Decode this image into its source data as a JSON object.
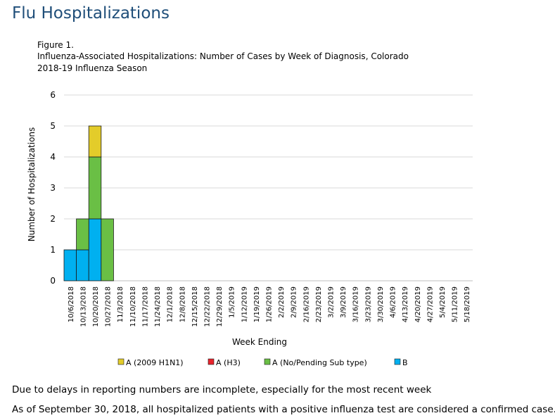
{
  "page": {
    "title": "Flu Hospitalizations",
    "figure_label": "Figure 1.",
    "caption_line1": "Influenza-Associated Hospitalizations: Number of  Cases by Week of Diagnosis, Colorado",
    "caption_line2": "2018-19  Influenza Season",
    "note1": "Due to delays in reporting numbers are incomplete, especially for the most recent week",
    "note2": "As of September 30, 2018, all hospitalized patients with a positive influenza test are considered a confirmed case."
  },
  "chart_data": {
    "type": "bar",
    "stacked": true,
    "title": "Influenza-Associated Hospitalizations: Number of  Cases by Week of Diagnosis, Colorado",
    "xlabel": "Week Ending",
    "ylabel": "Number of Hospitalizations",
    "ylim": [
      0,
      6
    ],
    "yticks": [
      0,
      1,
      2,
      3,
      4,
      5,
      6
    ],
    "grid": true,
    "legend_position": "bottom",
    "categories": [
      "10/6/2018",
      "10/13/2018",
      "10/20/2018",
      "10/27/2018",
      "11/3/2018",
      "11/10/2018",
      "11/17/2018",
      "11/24/2018",
      "12/1/2018",
      "12/8/2018",
      "12/15/2018",
      "12/22/2018",
      "12/29/2018",
      "1/5/2019",
      "1/12/2019",
      "1/19/2019",
      "1/26/2019",
      "2/2/2019",
      "2/9/2019",
      "2/16/2019",
      "2/23/2019",
      "3/2/2019",
      "3/9/2019",
      "3/16/2019",
      "3/23/2019",
      "3/30/2019",
      "4/6/2019",
      "4/13/2019",
      "4/20/2019",
      "4/27/2019",
      "5/4/2019",
      "5/11/2019",
      "5/18/2019"
    ],
    "series": [
      {
        "name": "B",
        "color": "#00b0f0",
        "values": [
          1,
          1,
          2,
          0,
          0,
          0,
          0,
          0,
          0,
          0,
          0,
          0,
          0,
          0,
          0,
          0,
          0,
          0,
          0,
          0,
          0,
          0,
          0,
          0,
          0,
          0,
          0,
          0,
          0,
          0,
          0,
          0,
          0
        ]
      },
      {
        "name": "A (No/Pending Sub type)",
        "color": "#6abf45",
        "values": [
          0,
          1,
          2,
          2,
          0,
          0,
          0,
          0,
          0,
          0,
          0,
          0,
          0,
          0,
          0,
          0,
          0,
          0,
          0,
          0,
          0,
          0,
          0,
          0,
          0,
          0,
          0,
          0,
          0,
          0,
          0,
          0,
          0
        ]
      },
      {
        "name": "A (H3)",
        "color": "#e8242c",
        "values": [
          0,
          0,
          0,
          0,
          0,
          0,
          0,
          0,
          0,
          0,
          0,
          0,
          0,
          0,
          0,
          0,
          0,
          0,
          0,
          0,
          0,
          0,
          0,
          0,
          0,
          0,
          0,
          0,
          0,
          0,
          0,
          0,
          0
        ]
      },
      {
        "name": "A (2009 H1N1)",
        "color": "#e3cc2a",
        "values": [
          0,
          0,
          1,
          0,
          0,
          0,
          0,
          0,
          0,
          0,
          0,
          0,
          0,
          0,
          0,
          0,
          0,
          0,
          0,
          0,
          0,
          0,
          0,
          0,
          0,
          0,
          0,
          0,
          0,
          0,
          0,
          0,
          0
        ]
      }
    ],
    "legend_order": [
      "A (2009 H1N1)",
      "A (H3)",
      "A (No/Pending Sub type)",
      "B"
    ]
  }
}
